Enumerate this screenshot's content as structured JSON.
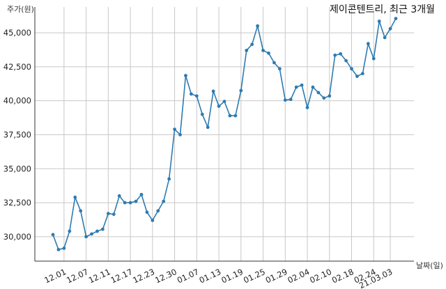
{
  "chart_data": {
    "type": "line",
    "title": "제이콘텐트리, 최근 3개월",
    "xlabel": "날짜(일)",
    "ylabel": "주가(원)",
    "ylim": [
      28200,
      46900
    ],
    "yticks": [
      30000,
      32500,
      35000,
      37500,
      40000,
      42500,
      45000
    ],
    "ytick_labels": [
      "30,000",
      "32,500",
      "35,000",
      "37,500",
      "40,000",
      "42,500",
      "45,000"
    ],
    "grid": true,
    "color": "#2e7bb0",
    "x_ticks": [
      {
        "index": 2,
        "label": "12.01"
      },
      {
        "index": 6,
        "label": "12.07"
      },
      {
        "index": 10,
        "label": "12.11"
      },
      {
        "index": 14,
        "label": "12.17"
      },
      {
        "index": 18,
        "label": "12.23"
      },
      {
        "index": 22,
        "label": "12.30"
      },
      {
        "index": 26,
        "label": "01.07"
      },
      {
        "index": 30,
        "label": "01.13"
      },
      {
        "index": 34,
        "label": "01.19"
      },
      {
        "index": 38,
        "label": "01.25"
      },
      {
        "index": 42,
        "label": "01.29"
      },
      {
        "index": 46,
        "label": "02.04"
      },
      {
        "index": 50,
        "label": "02.10"
      },
      {
        "index": 54,
        "label": "02.18"
      },
      {
        "index": 58,
        "label": "02.24"
      },
      {
        "index": 61,
        "label": "21.03.03"
      }
    ],
    "values": [
      30150,
      29050,
      29150,
      30400,
      32900,
      31900,
      30000,
      30200,
      30400,
      30550,
      31700,
      31650,
      33000,
      32500,
      32500,
      32600,
      33100,
      31800,
      31200,
      31900,
      32600,
      34250,
      37900,
      37500,
      41850,
      40500,
      40350,
      39000,
      38050,
      40700,
      39600,
      39950,
      38900,
      38900,
      40750,
      43700,
      44150,
      45500,
      43700,
      43500,
      42800,
      42350,
      40050,
      40100,
      41000,
      41150,
      39500,
      41000,
      40600,
      40200,
      40350,
      43350,
      43450,
      42950,
      42350,
      41800,
      42000,
      44200,
      43100,
      45850,
      44650,
      45300,
      46050
    ]
  }
}
